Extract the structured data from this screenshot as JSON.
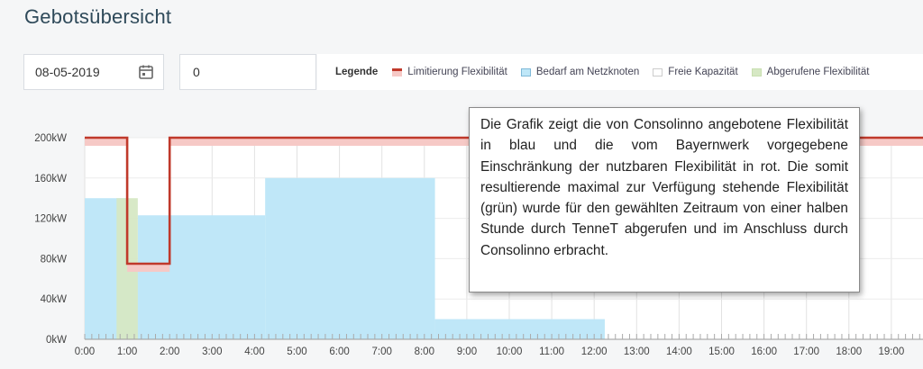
{
  "page": {
    "title": "Gebotsübersicht"
  },
  "controls": {
    "date_value": "08-05-2019",
    "kw_value": "0",
    "kw_unit": "kW"
  },
  "legend": {
    "title": "Legende",
    "items": [
      {
        "label": "Limitierung Flexibilität",
        "color": "#c0392b",
        "fill": "#f6c9c6"
      },
      {
        "label": "Bedarf am Netzknoten",
        "color": "#7fb9d8",
        "fill": "#bfe7f8"
      },
      {
        "label": "Freie Kapazität",
        "color": "#cccccc",
        "fill": "#ffffff"
      },
      {
        "label": "Abgerufene Flexibilität",
        "color": "#c8dfb0",
        "fill": "#d6e8c4"
      }
    ]
  },
  "tooltip": {
    "text": "Die Grafik zeigt die von Consolinno angebotene Flexibilität in blau und die vom Bayernwerk vorgegebene Einschränkung der nutzbaren Flexibilität in rot. Die somit resultierende maximal zur Verfügung stehende Flexibilität (grün) wurde für den gewählten Zeitraum von einer halben Stunde durch TenneT abgerufen und im Anschluss durch Consolinno erbracht."
  },
  "chart_data": {
    "type": "area",
    "x_unit": "hours",
    "y_ticks": [
      "0kW",
      "40kW",
      "80kW",
      "120kW",
      "160kW",
      "200kW"
    ],
    "ylim": [
      0,
      200
    ],
    "x_ticks": [
      "0:00",
      "1:00",
      "2:00",
      "3:00",
      "4:00",
      "5:00",
      "6:00",
      "7:00",
      "8:00",
      "9:00",
      "10:00",
      "11:00",
      "12:00",
      "13:00",
      "14:00",
      "15:00",
      "16:00",
      "17:00",
      "18:00",
      "19:00"
    ],
    "xlim": [
      0,
      19.8
    ],
    "series": [
      {
        "name": "Bedarf am Netzknoten",
        "color": "#bfe7f8",
        "segments": [
          {
            "x0": 0.0,
            "x1": 1.0,
            "value": 140
          },
          {
            "x0": 1.0,
            "x1": 1.25,
            "value": 72
          },
          {
            "x0": 1.25,
            "x1": 4.25,
            "value": 123
          },
          {
            "x0": 4.25,
            "x1": 8.25,
            "value": 160
          },
          {
            "x0": 8.25,
            "x1": 12.25,
            "value": 20
          }
        ]
      },
      {
        "name": "Limitierung Flexibilität",
        "color": "#c0392b",
        "steps": [
          {
            "x0": 0.0,
            "x1": 1.0,
            "value": 200
          },
          {
            "x0": 1.0,
            "x1": 2.0,
            "value": 75
          },
          {
            "x0": 2.0,
            "x1": 19.8,
            "value": 200
          }
        ],
        "band": 8
      },
      {
        "name": "Abgerufene Flexibilität",
        "color": "#d6e8c4",
        "segments": [
          {
            "x0": 0.75,
            "x1": 1.25,
            "value": 140
          }
        ]
      }
    ],
    "grid": true
  }
}
